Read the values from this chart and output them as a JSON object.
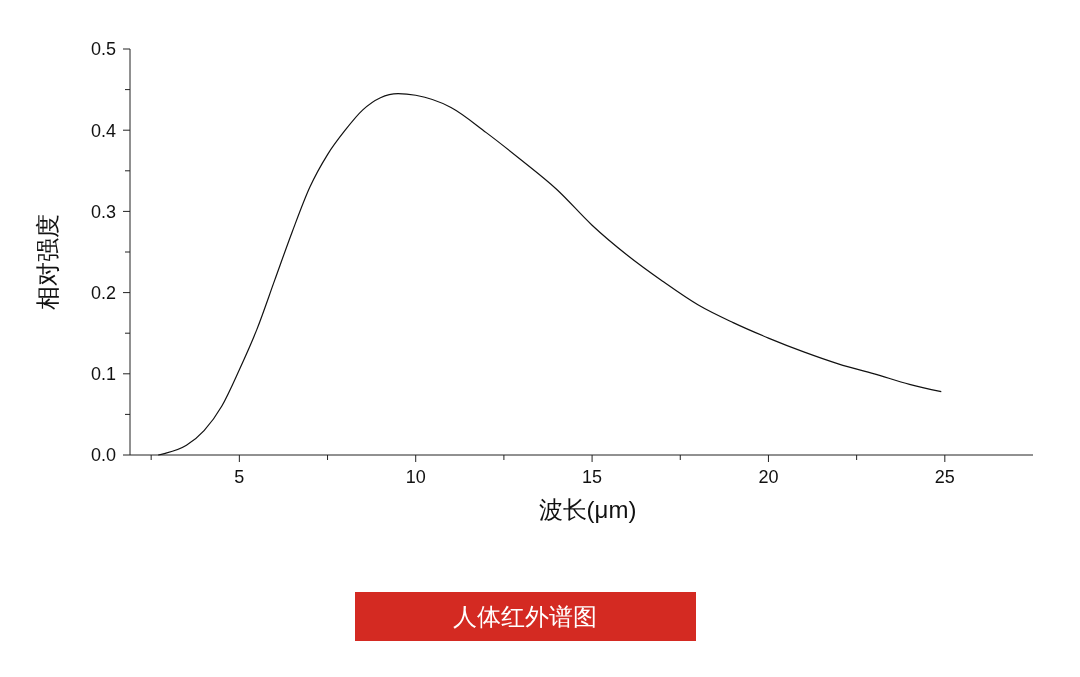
{
  "chart_data": {
    "type": "line",
    "xlabel": "波长(μm)",
    "ylabel": "相对强度",
    "x": [
      2.7,
      2.9,
      3.5,
      4,
      4.5,
      5,
      5.5,
      6,
      6.5,
      7,
      7.5,
      8,
      8.5,
      9,
      9.5,
      10,
      11,
      12,
      13,
      14,
      15,
      16,
      17,
      18,
      19,
      20,
      21,
      22,
      23,
      24,
      24.9
    ],
    "series": [
      {
        "color": "#111111",
        "values": [
          0,
          0.002,
          0.012,
          0.03,
          0.06,
          0.105,
          0.155,
          0.215,
          0.275,
          0.33,
          0.37,
          0.4,
          0.425,
          0.44,
          0.445,
          0.443,
          0.428,
          0.397,
          0.363,
          0.327,
          0.283,
          0.246,
          0.214,
          0.185,
          0.163,
          0.144,
          0.127,
          0.112,
          0.1,
          0.087,
          0.078
        ]
      }
    ],
    "xlim": [
      1.9,
      27.5
    ],
    "xticks": [
      {
        "value": 2.5,
        "label": null
      },
      5,
      {
        "value": 7.5,
        "label": null
      },
      10,
      {
        "value": 12.5,
        "label": null
      },
      15,
      {
        "value": 17.5,
        "label": null
      },
      20,
      {
        "value": 22.5,
        "label": null
      },
      25
    ],
    "ylim": [
      0,
      0.5
    ],
    "yticks": [
      {
        "value": 0,
        "label": "0.0"
      },
      {
        "value": 0.05,
        "label": null
      },
      {
        "value": 0.1,
        "label": "0.1"
      },
      {
        "value": 0.15,
        "label": null
      },
      {
        "value": 0.2,
        "label": "0.2"
      },
      {
        "value": 0.25,
        "label": null
      },
      {
        "value": 0.3,
        "label": "0.3"
      },
      {
        "value": 0.35,
        "label": null
      },
      {
        "value": 0.4,
        "label": "0.4"
      },
      {
        "value": 0.45,
        "label": null
      },
      {
        "value": 0.5,
        "label": "0.5"
      }
    ],
    "grid": false,
    "marker": "none",
    "line_style": "solid",
    "annotations": [
      "人体红外谱图"
    ]
  }
}
